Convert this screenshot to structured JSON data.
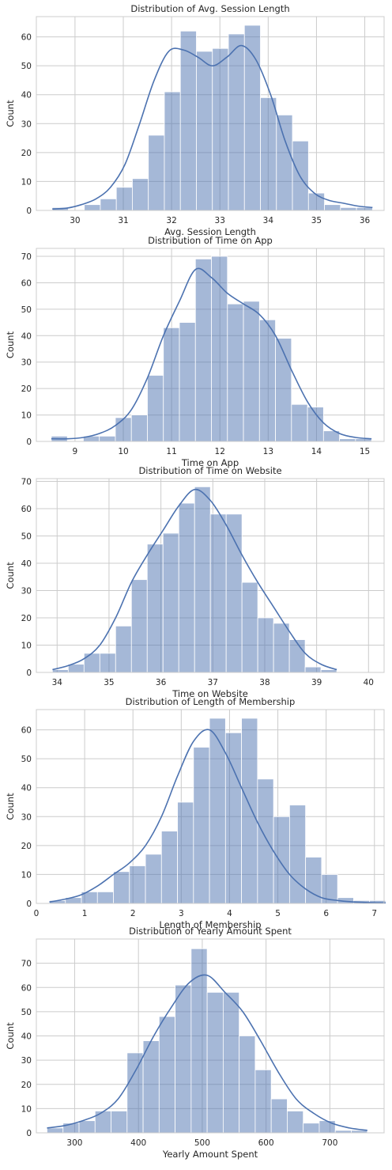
{
  "chart_data": [
    {
      "type": "bar",
      "title": "Distribution of Avg. Session Length",
      "xlabel": "Avg. Session Length",
      "ylabel": "Count",
      "xlim": [
        29.2,
        36.4
      ],
      "ylim": [
        0,
        67
      ],
      "xticks": [
        30,
        31,
        32,
        33,
        34,
        35,
        36
      ],
      "yticks": [
        0,
        10,
        20,
        30,
        40,
        50,
        60
      ],
      "bin_start": 29.53,
      "bin_width": 0.3315,
      "values": [
        1,
        0,
        2,
        4,
        8,
        11,
        26,
        41,
        62,
        55,
        56,
        61,
        64,
        39,
        33,
        24,
        6,
        2,
        1,
        1
      ],
      "kde_y": [
        0.5,
        0.8,
        2,
        4,
        8,
        16,
        30,
        45,
        55,
        55.5,
        53,
        50,
        53,
        57,
        52,
        40,
        24,
        12,
        6,
        3.5,
        2.5,
        1.5,
        1
      ]
    },
    {
      "type": "bar",
      "title": "Distribution of Time on App",
      "xlabel": "Time on App",
      "ylabel": "Count",
      "xlim": [
        8.2,
        15.4
      ],
      "ylim": [
        0,
        73
      ],
      "xticks": [
        9,
        10,
        11,
        12,
        13,
        14,
        15
      ],
      "yticks": [
        0,
        10,
        20,
        30,
        40,
        50,
        60,
        70
      ],
      "bin_start": 8.51,
      "bin_width": 0.3315,
      "values": [
        2,
        0,
        2,
        2,
        9,
        10,
        25,
        43,
        45,
        69,
        70,
        52,
        53,
        46,
        39,
        14,
        13,
        4,
        1,
        1
      ],
      "kde_y": [
        1,
        1,
        1.5,
        3,
        6,
        12,
        24,
        40,
        53,
        65,
        62,
        56,
        52,
        48,
        40,
        27,
        15,
        7,
        3,
        1.5,
        1
      ]
    },
    {
      "type": "bar",
      "title": "Distribution of Time on Website",
      "xlabel": "Time on Website",
      "ylabel": "Count",
      "xlim": [
        33.6,
        40.3
      ],
      "ylim": [
        0,
        71
      ],
      "xticks": [
        34,
        35,
        36,
        37,
        38,
        39,
        40
      ],
      "yticks": [
        0,
        10,
        20,
        30,
        40,
        50,
        60,
        70
      ],
      "bin_start": 33.91,
      "bin_width": 0.3043,
      "values": [
        1,
        3,
        7,
        7,
        17,
        34,
        47,
        51,
        62,
        68,
        58,
        58,
        33,
        20,
        18,
        12,
        2,
        1
      ],
      "kde_y": [
        1,
        2.5,
        5,
        10,
        20,
        33,
        43,
        52,
        61,
        67,
        63,
        54,
        43,
        33,
        24,
        15,
        7,
        3,
        1
      ]
    },
    {
      "type": "bar",
      "title": "Distribution of Length of Membership",
      "xlabel": "Length of Membership",
      "ylabel": "Count",
      "xlim": [
        0,
        7.2
      ],
      "ylim": [
        0,
        67
      ],
      "xticks": [
        0,
        1,
        2,
        3,
        4,
        5,
        6,
        7
      ],
      "yticks": [
        0,
        10,
        20,
        30,
        40,
        50,
        60
      ],
      "bin_start": 0.27,
      "bin_width": 0.3315,
      "values": [
        1,
        2,
        4,
        4,
        11,
        13,
        17,
        25,
        35,
        54,
        64,
        59,
        64,
        43,
        30,
        34,
        16,
        10,
        2,
        1,
        1
      ],
      "kde_y": [
        0.5,
        1.5,
        3,
        6,
        10,
        14,
        20,
        30,
        44,
        56,
        60,
        52,
        40,
        28,
        18,
        10,
        5,
        2,
        1,
        0.5,
        0.3,
        0.2
      ]
    },
    {
      "type": "bar",
      "title": "Distribution of Yearly Amount Spent",
      "xlabel": "Yearly Amount Spent",
      "ylabel": "Count",
      "xlim": [
        240,
        785
      ],
      "ylim": [
        0,
        80
      ],
      "xticks": [
        300,
        400,
        500,
        600,
        700
      ],
      "yticks": [
        0,
        10,
        20,
        30,
        40,
        50,
        60,
        70
      ],
      "bin_start": 256.7,
      "bin_width": 25.1,
      "values": [
        2,
        4,
        5,
        9,
        9,
        33,
        38,
        48,
        61,
        76,
        58,
        58,
        40,
        26,
        14,
        9,
        4,
        5,
        1,
        1
      ],
      "kde_y": [
        2,
        3,
        5,
        8,
        14,
        26,
        40,
        52,
        62,
        65,
        58,
        50,
        38,
        25,
        14,
        8,
        4,
        2,
        1
      ]
    }
  ]
}
